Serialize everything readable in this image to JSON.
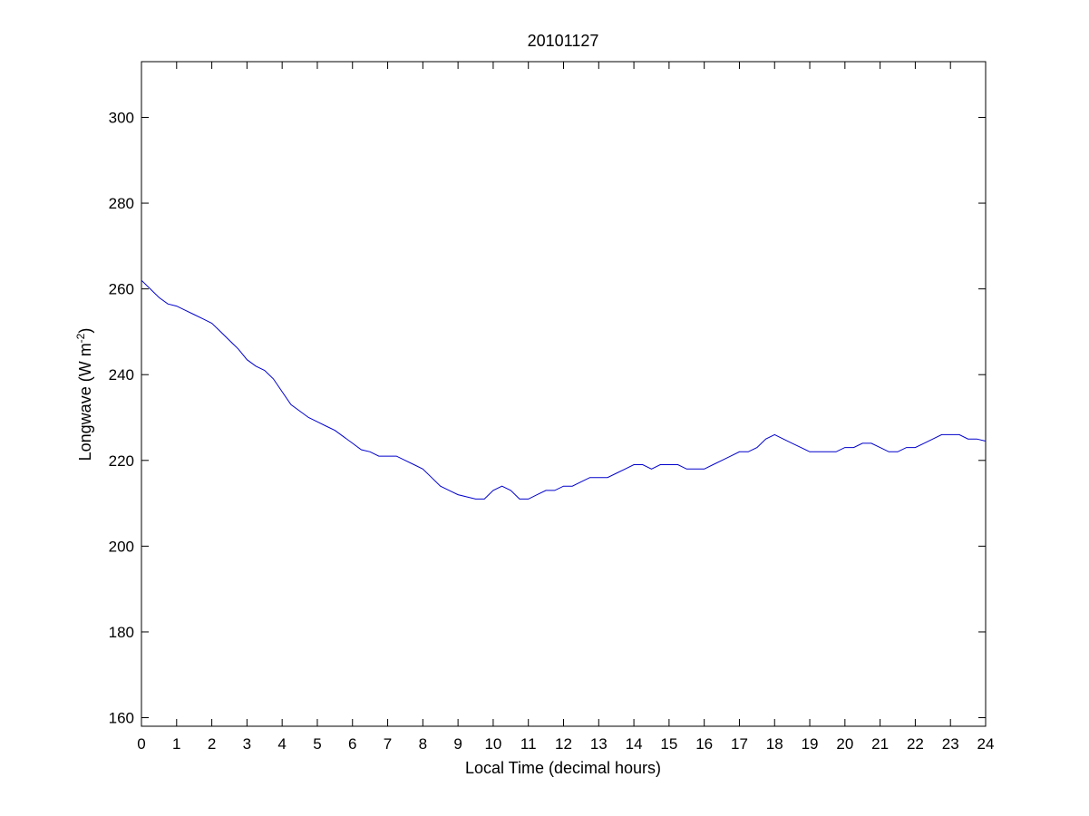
{
  "chart_data": {
    "type": "line",
    "title": "20101127",
    "xlabel": "Local Time (decimal hours)",
    "ylabel": {
      "main": "Longwave (W m",
      "superscript": "-2",
      "close": ")"
    },
    "xlim": [
      0,
      24
    ],
    "ylim": [
      158,
      313
    ],
    "xticks": [
      0,
      1,
      2,
      3,
      4,
      5,
      6,
      7,
      8,
      9,
      10,
      11,
      12,
      13,
      14,
      15,
      16,
      17,
      18,
      19,
      20,
      21,
      22,
      23,
      24
    ],
    "yticks": [
      160,
      180,
      200,
      220,
      240,
      260,
      280,
      300
    ],
    "grid": false,
    "line_color": "#0000cc",
    "series": [
      {
        "x": [
          0,
          0.25,
          0.5,
          0.75,
          1,
          1.25,
          1.5,
          1.75,
          2,
          2.25,
          2.5,
          2.75,
          3,
          3.25,
          3.5,
          3.75,
          4,
          4.25,
          4.5,
          4.75,
          5,
          5.25,
          5.5,
          5.75,
          6,
          6.25,
          6.5,
          6.75,
          7,
          7.25,
          7.5,
          7.75,
          8,
          8.25,
          8.5,
          8.75,
          9,
          9.25,
          9.5,
          9.75,
          10,
          10.25,
          10.5,
          10.75,
          11,
          11.25,
          11.5,
          11.75,
          12,
          12.25,
          12.5,
          12.75,
          13,
          13.25,
          13.5,
          13.75,
          14,
          14.25,
          14.5,
          14.75,
          15,
          15.25,
          15.5,
          15.75,
          16,
          16.25,
          16.5,
          16.75,
          17,
          17.25,
          17.5,
          17.75,
          18,
          18.25,
          18.5,
          18.75,
          19,
          19.25,
          19.5,
          19.75,
          20,
          20.25,
          20.5,
          20.75,
          21,
          21.25,
          21.5,
          21.75,
          22,
          22.25,
          22.5,
          22.75,
          23,
          23.25,
          23.5,
          23.75,
          24
        ],
        "y": [
          262,
          260,
          258,
          256.5,
          256,
          255,
          254,
          253,
          252,
          250,
          248,
          246,
          243.5,
          242,
          241,
          239,
          236,
          233,
          231.5,
          230,
          229,
          228,
          227,
          225.5,
          224,
          222.5,
          222,
          221,
          221,
          221,
          220,
          219,
          218,
          216,
          214,
          213,
          212,
          211.5,
          211,
          211,
          213,
          214,
          213,
          211,
          211,
          212,
          213,
          213,
          214,
          214,
          215,
          216,
          216,
          216,
          217,
          218,
          219,
          219,
          218,
          219,
          219,
          219,
          218,
          218,
          218,
          219,
          220,
          221,
          222,
          222,
          223,
          225,
          226,
          225,
          224,
          223,
          222,
          222,
          222,
          222,
          223,
          223,
          224,
          224,
          223,
          222,
          222,
          223,
          223,
          224,
          225,
          226,
          226,
          226,
          225,
          225,
          224.5
        ]
      }
    ]
  }
}
